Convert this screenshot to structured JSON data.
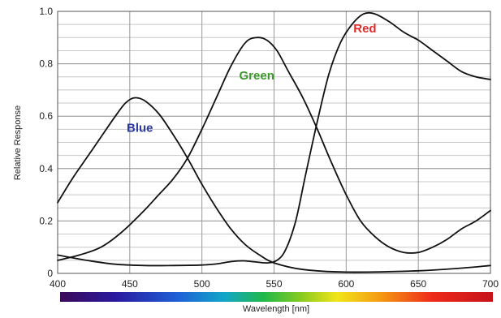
{
  "chart_data": {
    "type": "line",
    "title": "",
    "xlabel": "Wavelength [nm]",
    "ylabel": "Relative Response",
    "xlim": [
      400,
      700
    ],
    "ylim": [
      0,
      1.0
    ],
    "x_ticks": [
      400,
      450,
      500,
      550,
      600,
      650,
      700
    ],
    "x_tick_labels": [
      "400",
      "450",
      "500",
      "550",
      "600",
      "650",
      "700"
    ],
    "y_ticks": [
      0,
      0.2,
      0.4,
      0.6,
      0.8,
      1.0
    ],
    "y_tick_labels": [
      "0",
      "0.2",
      "0.4",
      "0.6",
      "0.8",
      "1.0"
    ],
    "grid": true,
    "minor_y_grid_step": 0.05,
    "spectrum_bar": true,
    "series": [
      {
        "name": "Blue",
        "label_color": "#2b3a9c",
        "label_at": [
          457,
          0.54
        ],
        "points": [
          [
            400,
            0.27
          ],
          [
            410,
            0.36
          ],
          [
            420,
            0.44
          ],
          [
            430,
            0.52
          ],
          [
            440,
            0.6
          ],
          [
            447,
            0.65
          ],
          [
            453,
            0.67
          ],
          [
            460,
            0.66
          ],
          [
            470,
            0.61
          ],
          [
            480,
            0.53
          ],
          [
            490,
            0.44
          ],
          [
            500,
            0.34
          ],
          [
            510,
            0.25
          ],
          [
            520,
            0.17
          ],
          [
            530,
            0.11
          ],
          [
            540,
            0.07
          ],
          [
            550,
            0.04
          ],
          [
            570,
            0.015
          ],
          [
            600,
            0.005
          ],
          [
            650,
            0.01
          ],
          [
            680,
            0.02
          ],
          [
            700,
            0.03
          ]
        ]
      },
      {
        "name": "Green",
        "label_color": "#3a9b2a",
        "label_at": [
          538,
          0.74
        ],
        "points": [
          [
            400,
            0.05
          ],
          [
            415,
            0.07
          ],
          [
            430,
            0.1
          ],
          [
            445,
            0.16
          ],
          [
            460,
            0.24
          ],
          [
            470,
            0.3
          ],
          [
            480,
            0.36
          ],
          [
            490,
            0.44
          ],
          [
            500,
            0.55
          ],
          [
            510,
            0.67
          ],
          [
            520,
            0.79
          ],
          [
            530,
            0.88
          ],
          [
            538,
            0.9
          ],
          [
            545,
            0.89
          ],
          [
            552,
            0.85
          ],
          [
            560,
            0.77
          ],
          [
            570,
            0.67
          ],
          [
            580,
            0.55
          ],
          [
            590,
            0.42
          ],
          [
            600,
            0.3
          ],
          [
            610,
            0.2
          ],
          [
            620,
            0.14
          ],
          [
            630,
            0.1
          ],
          [
            640,
            0.08
          ],
          [
            650,
            0.08
          ],
          [
            660,
            0.1
          ],
          [
            670,
            0.13
          ],
          [
            680,
            0.17
          ],
          [
            690,
            0.2
          ],
          [
            700,
            0.24
          ]
        ]
      },
      {
        "name": "Red",
        "label_color": "#e02a2a",
        "label_at": [
          613,
          0.92
        ],
        "points": [
          [
            400,
            0.07
          ],
          [
            420,
            0.05
          ],
          [
            440,
            0.035
          ],
          [
            460,
            0.03
          ],
          [
            480,
            0.03
          ],
          [
            500,
            0.032
          ],
          [
            510,
            0.036
          ],
          [
            520,
            0.045
          ],
          [
            528,
            0.048
          ],
          [
            535,
            0.045
          ],
          [
            545,
            0.04
          ],
          [
            552,
            0.05
          ],
          [
            558,
            0.09
          ],
          [
            565,
            0.2
          ],
          [
            572,
            0.38
          ],
          [
            580,
            0.58
          ],
          [
            588,
            0.76
          ],
          [
            596,
            0.88
          ],
          [
            604,
            0.95
          ],
          [
            612,
            0.99
          ],
          [
            620,
            0.99
          ],
          [
            630,
            0.96
          ],
          [
            640,
            0.92
          ],
          [
            650,
            0.89
          ],
          [
            660,
            0.85
          ],
          [
            670,
            0.81
          ],
          [
            680,
            0.77
          ],
          [
            690,
            0.75
          ],
          [
            700,
            0.74
          ]
        ]
      }
    ]
  }
}
